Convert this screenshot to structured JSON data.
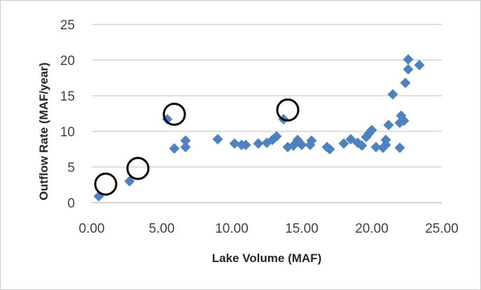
{
  "chart_data": {
    "type": "scatter",
    "title": "",
    "xlabel": "Lake Volume (MAF)",
    "ylabel": "Outflow Rate (MAF/year)",
    "xlim": [
      0,
      25
    ],
    "ylim": [
      0,
      25
    ],
    "x_ticks": [
      "0.00",
      "5.00",
      "10.00",
      "15.00",
      "20.00",
      "25.00"
    ],
    "y_ticks": [
      "0",
      "5",
      "10",
      "15",
      "20",
      "25"
    ],
    "y_tick_values": [
      0,
      5,
      10,
      15,
      20,
      25
    ],
    "x_tick_values": [
      0,
      5,
      10,
      15,
      20,
      25
    ],
    "grid": "horizontal",
    "legend": "none",
    "marker_color": "#4f81bd",
    "highlight_color": "#000000",
    "series": [
      {
        "marker": "diamond",
        "points": [
          [
            0.5,
            0.9
          ],
          [
            2.7,
            3.0
          ],
          [
            5.4,
            11.7
          ],
          [
            5.9,
            7.6
          ],
          [
            6.7,
            7.8
          ],
          [
            6.7,
            8.7
          ],
          [
            9.0,
            8.9
          ],
          [
            10.2,
            8.3
          ],
          [
            10.7,
            8.1
          ],
          [
            11.0,
            8.1
          ],
          [
            11.9,
            8.3
          ],
          [
            12.5,
            8.4
          ],
          [
            12.9,
            8.8
          ],
          [
            13.2,
            9.3
          ],
          [
            13.7,
            11.7
          ],
          [
            14.0,
            7.8
          ],
          [
            14.4,
            8.0
          ],
          [
            14.7,
            8.8
          ],
          [
            15.0,
            8.1
          ],
          [
            15.6,
            8.1
          ],
          [
            15.7,
            8.7
          ],
          [
            16.8,
            7.8
          ],
          [
            17.0,
            7.5
          ],
          [
            18.0,
            8.3
          ],
          [
            18.5,
            8.9
          ],
          [
            19.0,
            8.4
          ],
          [
            19.3,
            8.0
          ],
          [
            19.6,
            9.2
          ],
          [
            19.8,
            9.7
          ],
          [
            20.0,
            10.2
          ],
          [
            20.3,
            7.8
          ],
          [
            20.8,
            7.7
          ],
          [
            21.0,
            8.1
          ],
          [
            21.0,
            8.8
          ],
          [
            21.2,
            10.9
          ],
          [
            21.5,
            15.2
          ],
          [
            22.0,
            7.7
          ],
          [
            22.0,
            11.2
          ],
          [
            22.1,
            12.2
          ],
          [
            22.3,
            11.5
          ],
          [
            22.4,
            16.8
          ],
          [
            22.6,
            18.7
          ],
          [
            22.6,
            20.1
          ],
          [
            23.4,
            19.3
          ]
        ]
      }
    ],
    "annotations": [
      {
        "shape": "circle",
        "x": 1.0,
        "y": 2.6
      },
      {
        "shape": "circle",
        "x": 3.3,
        "y": 4.8
      },
      {
        "shape": "circle",
        "x": 5.9,
        "y": 12.4
      },
      {
        "shape": "circle",
        "x": 14.0,
        "y": 13.0
      }
    ]
  }
}
